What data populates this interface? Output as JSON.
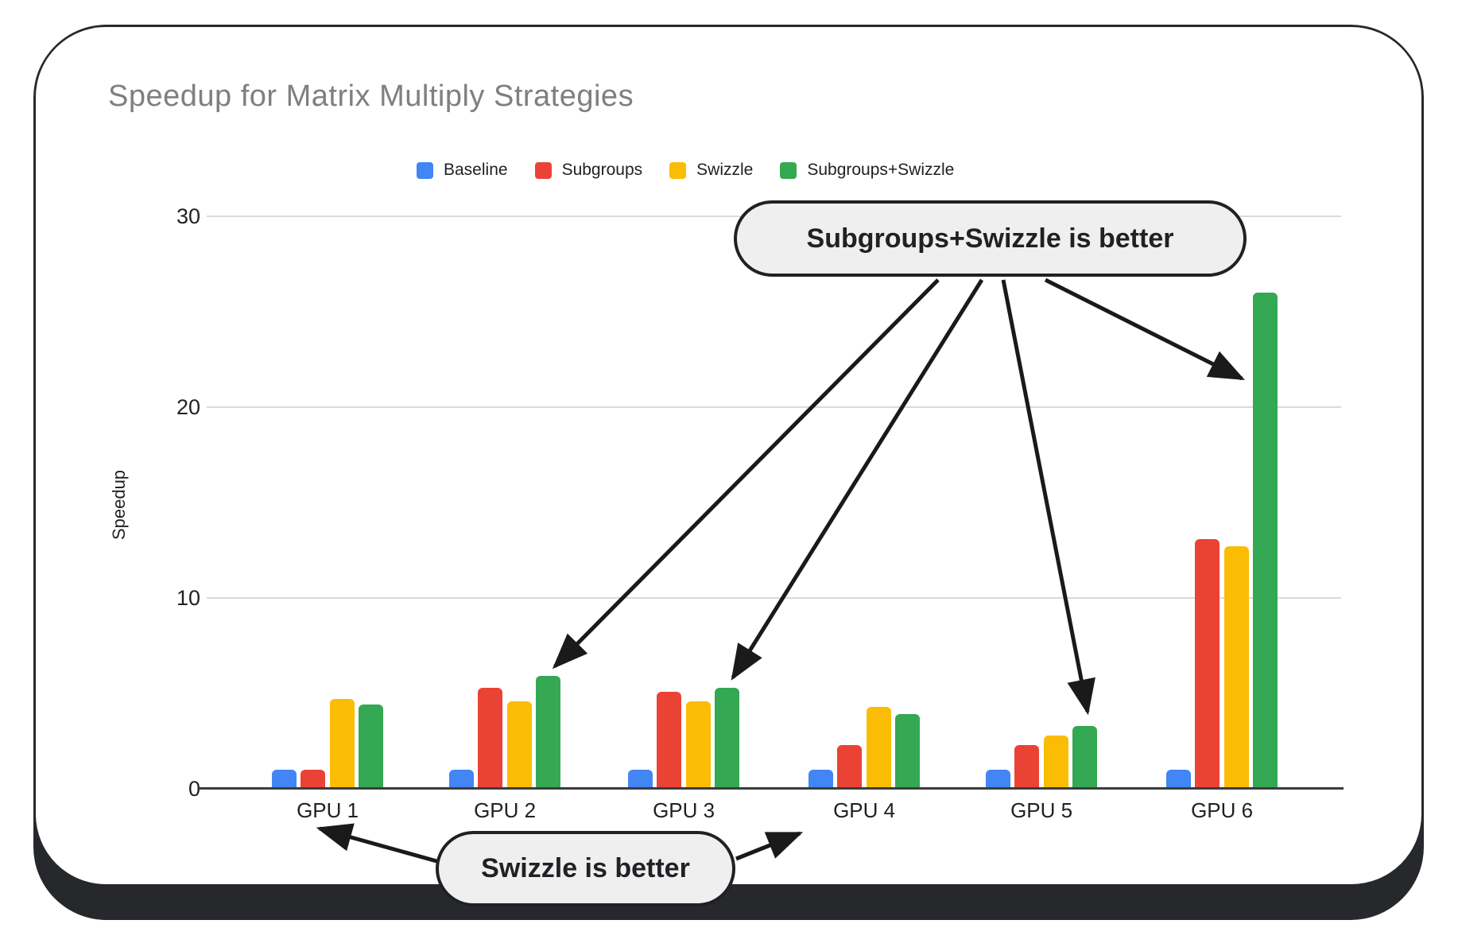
{
  "figure": {
    "title": "Speedup for Matrix Multiply Strategies"
  },
  "chart_data": {
    "type": "bar",
    "title": "Speedup for Matrix Multiply Strategies",
    "categories": [
      "GPU 1",
      "GPU 2",
      "GPU 3",
      "GPU 4",
      "GPU 5",
      "GPU 6"
    ],
    "series": [
      {
        "name": "Baseline",
        "color": "#4285F4",
        "values": [
          1.0,
          1.0,
          1.0,
          1.0,
          1.0,
          1.0
        ]
      },
      {
        "name": "Subgroups",
        "color": "#EA4335",
        "values": [
          1.0,
          5.3,
          5.1,
          2.3,
          2.3,
          13.1
        ]
      },
      {
        "name": "Swizzle",
        "color": "#FBBC04",
        "values": [
          4.7,
          4.6,
          4.6,
          4.3,
          2.8,
          12.7
        ]
      },
      {
        "name": "Subgroups+Swizzle",
        "color": "#34A853",
        "values": [
          4.4,
          5.9,
          5.3,
          3.9,
          3.3,
          26.0
        ]
      }
    ],
    "xlabel": "",
    "ylabel": "Speedup",
    "ylim": [
      0,
      30
    ],
    "yticks": [
      0,
      10,
      20,
      30
    ],
    "grid": true,
    "legend_position": "top"
  },
  "annotations": {
    "top_callout": {
      "text": "Subgroups+Swizzle is better",
      "points_to": [
        "GPU 2 green bar",
        "GPU 3 green bar",
        "GPU 5 green bar",
        "GPU 6 green bar"
      ]
    },
    "bottom_callout": {
      "text": "Swizzle is better",
      "points_to": [
        "GPU 1",
        "GPU 4"
      ]
    }
  },
  "colors": {
    "card_base": "#26282c",
    "grid": "#dadada",
    "axis": "#3c3c3c",
    "title_text": "#7f7f7f",
    "callout_fill": "#efefef",
    "callout_border": "#202124"
  }
}
